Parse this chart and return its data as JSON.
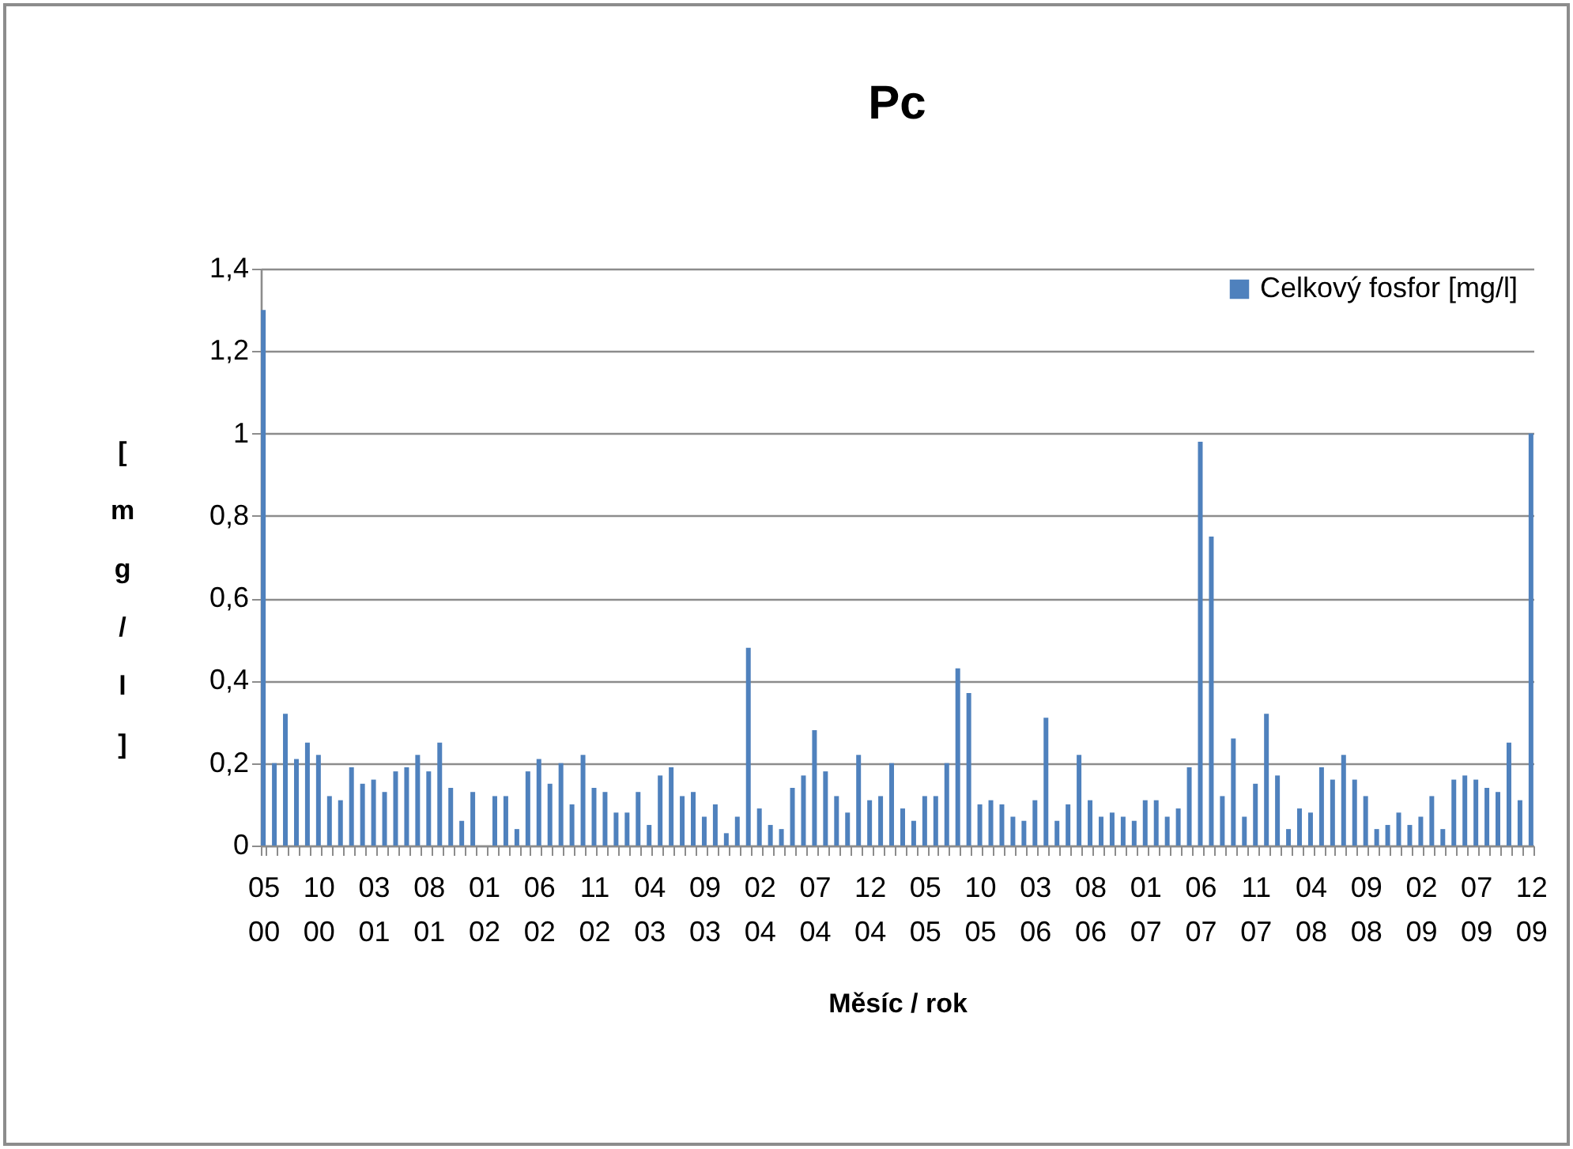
{
  "chart_data": {
    "type": "bar",
    "title": "Pc",
    "xlabel": "Měsíc / rok",
    "ylabel": "[mg/l]",
    "categories": [
      "05 00",
      null,
      null,
      null,
      null,
      "10 00",
      null,
      null,
      null,
      null,
      "03 01",
      null,
      null,
      null,
      null,
      "08 01",
      null,
      null,
      null,
      null,
      "01 02",
      null,
      null,
      null,
      null,
      "06 02",
      null,
      null,
      null,
      null,
      "11 02",
      null,
      null,
      null,
      null,
      "04 03",
      null,
      null,
      null,
      null,
      "09 03",
      null,
      null,
      null,
      null,
      "02 04",
      null,
      null,
      null,
      null,
      "07 04",
      null,
      null,
      null,
      null,
      "12 04",
      null,
      null,
      null,
      null,
      "05 05",
      null,
      null,
      null,
      null,
      "10 05",
      null,
      null,
      null,
      null,
      "03 06",
      null,
      null,
      null,
      null,
      "08 06",
      null,
      null,
      null,
      null,
      "01 07",
      null,
      null,
      null,
      null,
      "06 07",
      null,
      null,
      null,
      null,
      "11 07",
      null,
      null,
      null,
      null,
      "04 08",
      null,
      null,
      null,
      null,
      "09 08",
      null,
      null,
      null,
      null,
      "02 09",
      null,
      null,
      null,
      null,
      "07 09",
      null,
      null,
      null,
      null,
      "12 09"
    ],
    "series": [
      {
        "name": "Celkový fosfor  [mg/l]",
        "color": "#4f81bd",
        "values": [
          1.3,
          0.2,
          0.32,
          0.21,
          0.25,
          0.22,
          0.12,
          0.11,
          0.19,
          0.15,
          0.16,
          0.13,
          0.18,
          0.19,
          0.22,
          0.18,
          0.25,
          0.14,
          0.06,
          0.13,
          null,
          0.12,
          0.12,
          0.04,
          0.18,
          0.21,
          0.15,
          0.2,
          0.1,
          0.22,
          0.14,
          0.13,
          0.08,
          0.08,
          0.13,
          0.05,
          0.17,
          0.19,
          0.12,
          0.13,
          0.07,
          0.1,
          0.03,
          0.07,
          0.48,
          0.09,
          0.05,
          0.04,
          0.14,
          0.17,
          0.28,
          0.18,
          0.12,
          0.08,
          0.22,
          0.11,
          0.12,
          0.2,
          0.09,
          0.06,
          0.12,
          0.12,
          0.2,
          0.43,
          0.37,
          0.1,
          0.11,
          0.1,
          0.07,
          0.06,
          0.11,
          0.31,
          0.06,
          0.1,
          0.22,
          0.11,
          0.07,
          0.08,
          0.07,
          0.06,
          0.11,
          0.11,
          0.07,
          0.09,
          0.19,
          0.98,
          0.75,
          0.12,
          0.26,
          0.07,
          0.15,
          0.32,
          0.17,
          0.04,
          0.09,
          0.08,
          0.19,
          0.16,
          0.22,
          0.16,
          0.12,
          0.04,
          0.05,
          0.08,
          0.05,
          0.07,
          0.12,
          0.04,
          0.16,
          0.17,
          0.16,
          0.14,
          0.13,
          0.25,
          0.11,
          1.0
        ]
      }
    ],
    "ylim": [
      0,
      1.4
    ],
    "yticks": [
      0,
      {
        "value": 0.2,
        "label": "0,2"
      },
      {
        "value": 0.4,
        "label": "0,4"
      },
      {
        "value": 0.6,
        "label": "0,6"
      },
      {
        "value": 0.8,
        "label": "0,8"
      },
      1,
      {
        "value": 1.2,
        "label": "1,2"
      },
      {
        "value": 1.4,
        "label": "1,4"
      }
    ],
    "grid": "y",
    "legend": "top right"
  }
}
